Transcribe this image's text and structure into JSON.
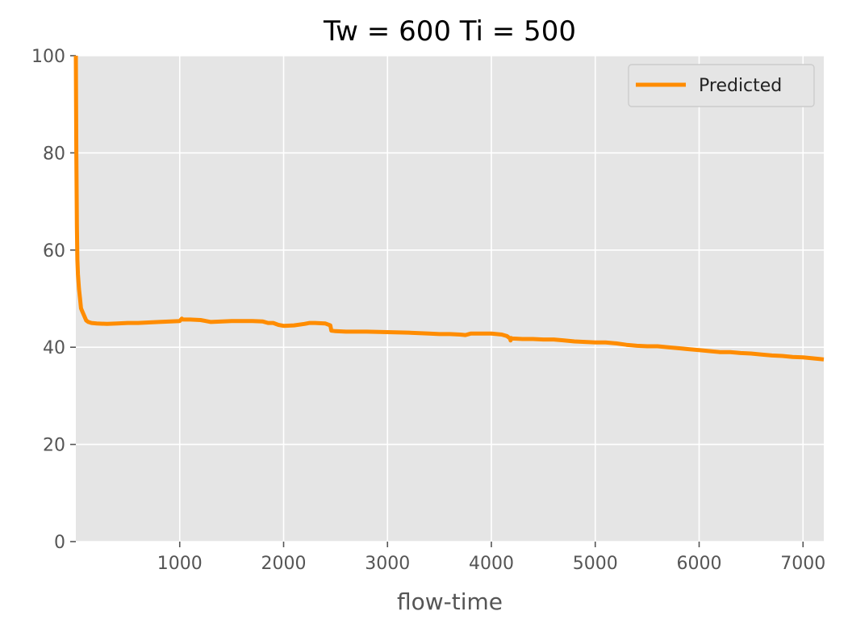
{
  "chart_data": {
    "type": "line",
    "title": "Tw = 600 Ti = 500",
    "xlabel": "flow-time",
    "ylabel": "",
    "xlim": [
      0,
      7200
    ],
    "ylim": [
      0,
      100
    ],
    "xticks": [
      1000,
      2000,
      3000,
      4000,
      5000,
      6000,
      7000
    ],
    "yticks": [
      0,
      20,
      40,
      60,
      80,
      100
    ],
    "grid": true,
    "legend_position": "top-right",
    "colors": {
      "background": "#e5e5e5",
      "grid": "#ffffff",
      "line": "#ff8c00"
    },
    "series": [
      {
        "name": "Predicted",
        "x": [
          0,
          5,
          10,
          15,
          20,
          30,
          40,
          50,
          60,
          70,
          80,
          90,
          100,
          120,
          150,
          200,
          300,
          400,
          500,
          600,
          800,
          1000,
          1020,
          1030,
          1100,
          1200,
          1250,
          1300,
          1500,
          1700,
          1800,
          1850,
          1900,
          1950,
          2000,
          2100,
          2200,
          2250,
          2300,
          2400,
          2450,
          2460,
          2500,
          2600,
          2800,
          3000,
          3200,
          3400,
          3500,
          3600,
          3700,
          3750,
          3800,
          4000,
          4100,
          4150,
          4180,
          4185,
          4190,
          4200,
          4300,
          4400,
          4500,
          4600,
          4700,
          4800,
          4900,
          5000,
          5100,
          5200,
          5300,
          5400,
          5500,
          5600,
          5700,
          5800,
          5900,
          6000,
          6100,
          6200,
          6300,
          6400,
          6500,
          6600,
          6700,
          6800,
          6900,
          7000,
          7100,
          7200
        ],
        "values": [
          100,
          80,
          65,
          58,
          55,
          52,
          50,
          48,
          47.5,
          47,
          46.5,
          46,
          45.5,
          45.2,
          45,
          44.9,
          44.8,
          44.9,
          45,
          45,
          45.2,
          45.4,
          45.9,
          45.7,
          45.7,
          45.6,
          45.4,
          45.2,
          45.4,
          45.4,
          45.3,
          45,
          45,
          44.6,
          44.4,
          44.5,
          44.8,
          45,
          45,
          44.9,
          44.5,
          43.4,
          43.3,
          43.2,
          43.2,
          43.1,
          43,
          42.8,
          42.7,
          42.7,
          42.6,
          42.5,
          42.8,
          42.8,
          42.6,
          42.3,
          41.8,
          41.4,
          41.9,
          41.8,
          41.7,
          41.7,
          41.6,
          41.6,
          41.4,
          41.2,
          41.1,
          41,
          41,
          40.8,
          40.5,
          40.3,
          40.2,
          40.2,
          40,
          39.8,
          39.6,
          39.4,
          39.2,
          39,
          39,
          38.8,
          38.7,
          38.5,
          38.3,
          38.2,
          38,
          37.9,
          37.7,
          37.5
        ]
      }
    ]
  }
}
